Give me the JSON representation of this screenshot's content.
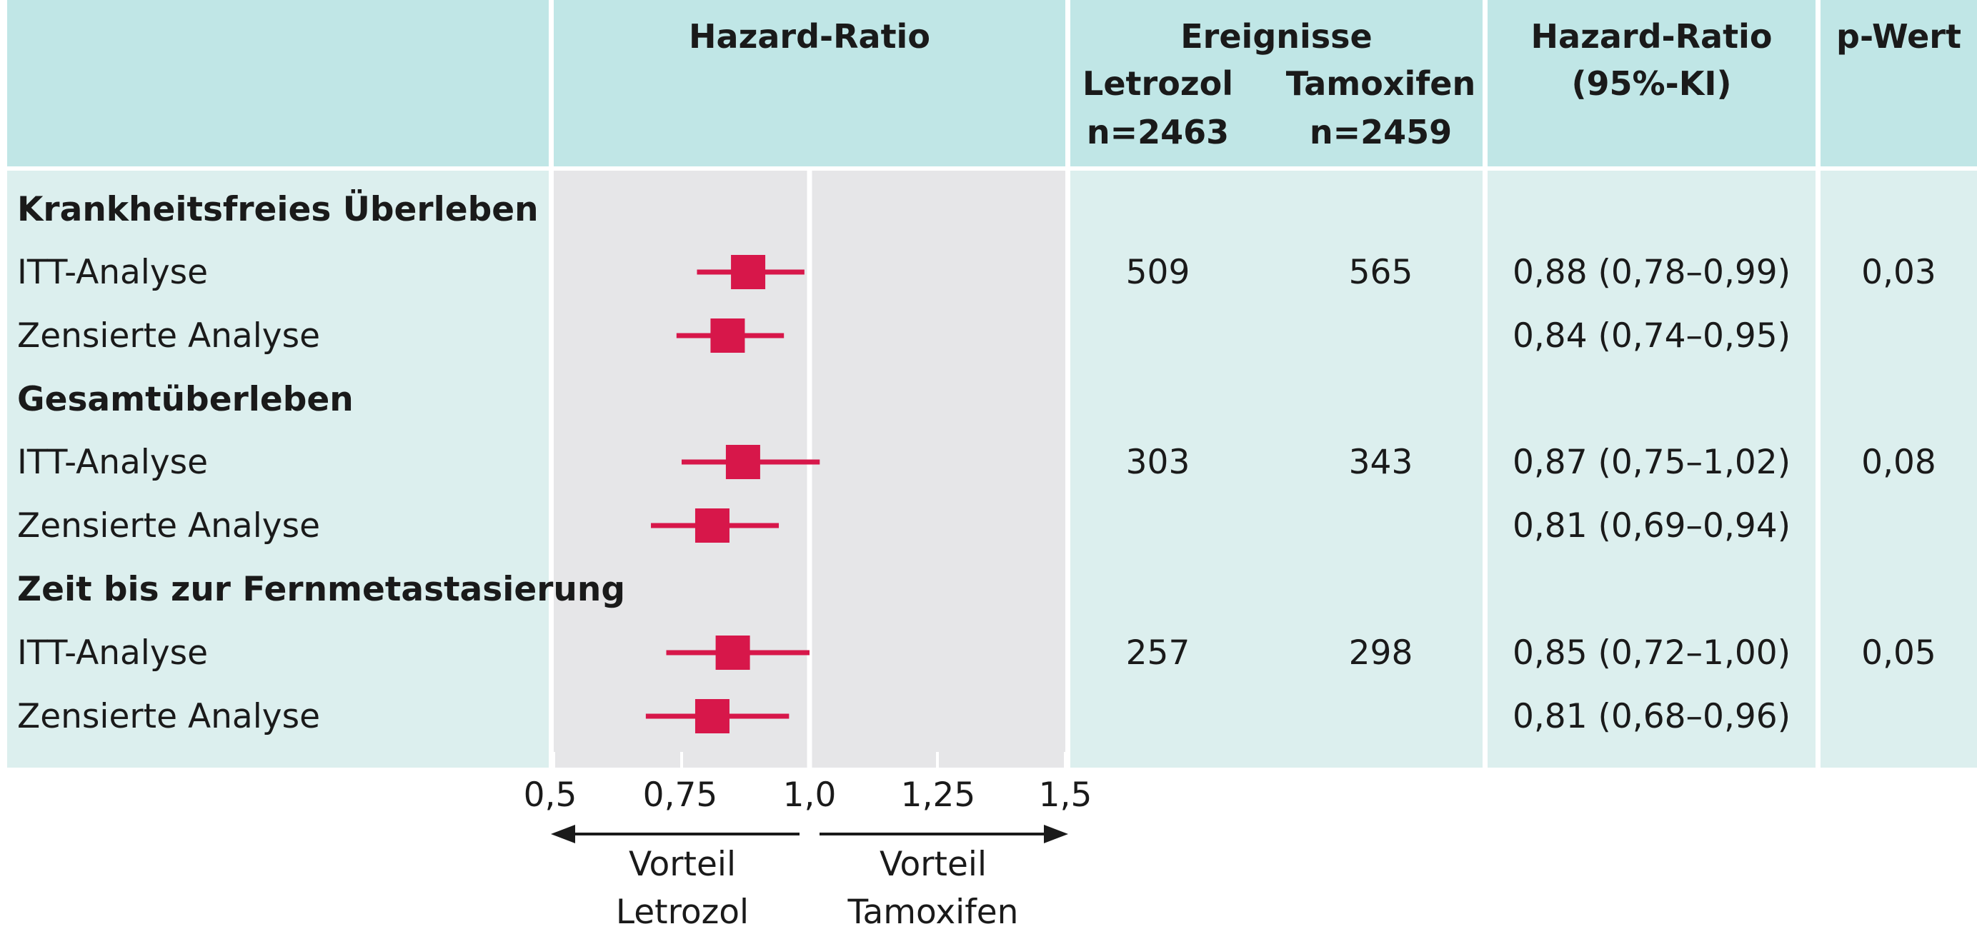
{
  "header": {
    "hr_plot": "Hazard-Ratio",
    "events": "Ereignisse",
    "letrozol": "Letrozol",
    "tamoxifen": "Tamoxifen",
    "n_letrozol": "n=2463",
    "n_tamoxifen": "n=2459",
    "hr_ci_line1": "Hazard-Ratio",
    "hr_ci_line2": "(95%-KI)",
    "pvalue": "p-Wert"
  },
  "sections": [
    {
      "title": "Krankheitsfreies Überleben",
      "rows": [
        {
          "label": "ITT-Analyse",
          "ev_letrozol": "509",
          "ev_tamoxifen": "565",
          "hr_text": "0,88 (0,78–0,99)",
          "p": "0,03"
        },
        {
          "label": "Zensierte Analyse",
          "ev_letrozol": "",
          "ev_tamoxifen": "",
          "hr_text": "0,84 (0,74–0,95)",
          "p": ""
        }
      ]
    },
    {
      "title": "Gesamtüberleben",
      "rows": [
        {
          "label": "ITT-Analyse",
          "ev_letrozol": "303",
          "ev_tamoxifen": "343",
          "hr_text": "0,87 (0,75–1,02)",
          "p": "0,08"
        },
        {
          "label": "Zensierte Analyse",
          "ev_letrozol": "",
          "ev_tamoxifen": "",
          "hr_text": "0,81 (0,69–0,94)",
          "p": ""
        }
      ]
    },
    {
      "title": "Zeit bis zur Fernmetastasierung",
      "rows": [
        {
          "label": "ITT-Analyse",
          "ev_letrozol": "257",
          "ev_tamoxifen": "298",
          "hr_text": "0,85 (0,72–1,00)",
          "p": "0,05"
        },
        {
          "label": "Zensierte Analyse",
          "ev_letrozol": "",
          "ev_tamoxifen": "",
          "hr_text": "0,81 (0,68–0,96)",
          "p": ""
        }
      ]
    }
  ],
  "axis": {
    "ticks": [
      "0,5",
      "0,75",
      "1,0",
      "1,25",
      "1,5"
    ],
    "left_label_1": "Vorteil",
    "left_label_2": "Letrozol",
    "right_label_1": "Vorteil",
    "right_label_2": "Tamoxifen"
  },
  "chart_data": {
    "type": "forest",
    "xlim": [
      0.5,
      1.5
    ],
    "reference_line": 1.0,
    "categories": [
      "Krankheitsfreies Überleben – ITT-Analyse",
      "Krankheitsfreies Überleben – Zensierte Analyse",
      "Gesamtüberleben – ITT-Analyse",
      "Gesamtüberleben – Zensierte Analyse",
      "Zeit bis zur Fernmetastasierung – ITT-Analyse",
      "Zeit bis zur Fernmetastasierung – Zensierte Analyse"
    ],
    "hr": [
      0.88,
      0.84,
      0.87,
      0.81,
      0.85,
      0.81
    ],
    "lower": [
      0.78,
      0.74,
      0.75,
      0.69,
      0.72,
      0.68
    ],
    "upper": [
      0.99,
      0.95,
      1.02,
      0.94,
      1.0,
      0.96
    ],
    "marker_color": "#d7174a"
  }
}
